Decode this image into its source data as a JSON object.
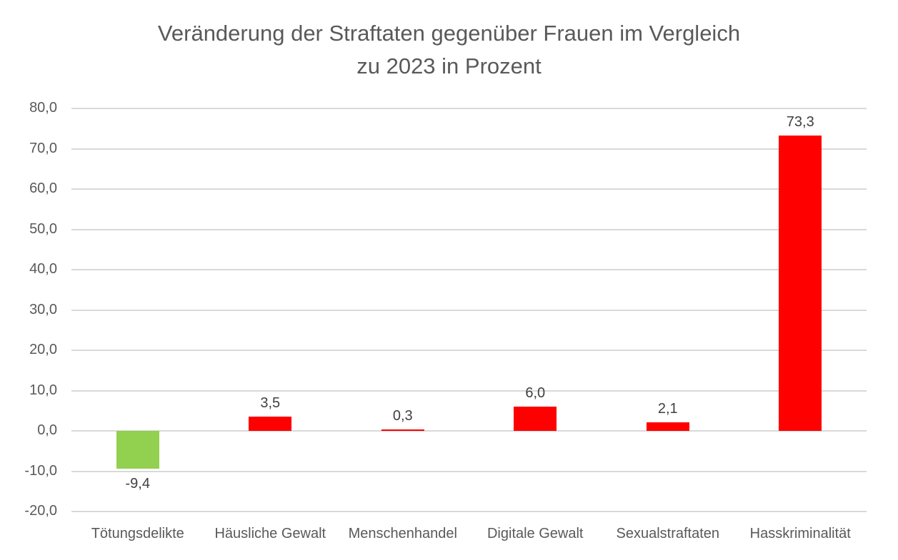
{
  "chart_data": {
    "type": "bar",
    "title_line1": "Veränderung der Straftaten gegenüber Frauen im Vergleich",
    "title_line2": "zu 2023 in Prozent",
    "xlabel": "",
    "ylabel": "",
    "categories": [
      "Tötungsdelikte",
      "Häusliche Gewalt",
      "Menschenhandel",
      "Digitale Gewalt",
      "Sexualstraftaten",
      "Hasskriminalität"
    ],
    "values": [
      -9.4,
      3.5,
      0.3,
      6.0,
      2.1,
      73.3
    ],
    "data_labels": [
      "-9,4",
      "3,5",
      "0,3",
      "6,0",
      "2,1",
      "73,3"
    ],
    "bar_colors": [
      "#92D050",
      "#FF0000",
      "#FF0000",
      "#FF0000",
      "#FF0000",
      "#FF0000"
    ],
    "y_ticks": [
      {
        "label": "80,0",
        "value": 80
      },
      {
        "label": "70,0",
        "value": 70
      },
      {
        "label": "60,0",
        "value": 60
      },
      {
        "label": "50,0",
        "value": 50
      },
      {
        "label": "40,0",
        "value": 40
      },
      {
        "label": "30,0",
        "value": 30
      },
      {
        "label": "20,0",
        "value": 20
      },
      {
        "label": "10,0",
        "value": 10
      },
      {
        "label": "0,0",
        "value": 0
      },
      {
        "label": "-10,0",
        "value": -10
      },
      {
        "label": "-20,0",
        "value": -20
      }
    ],
    "ylim": [
      -20,
      80
    ],
    "grid": true,
    "legend": "none",
    "colors": {
      "negative_bar": "#92D050",
      "positive_bar": "#FF0000",
      "grid": "#D9D9D9",
      "title_text": "#595959",
      "axis_text": "#595959",
      "data_label_text": "#404040",
      "background": "#FFFFFF"
    }
  }
}
